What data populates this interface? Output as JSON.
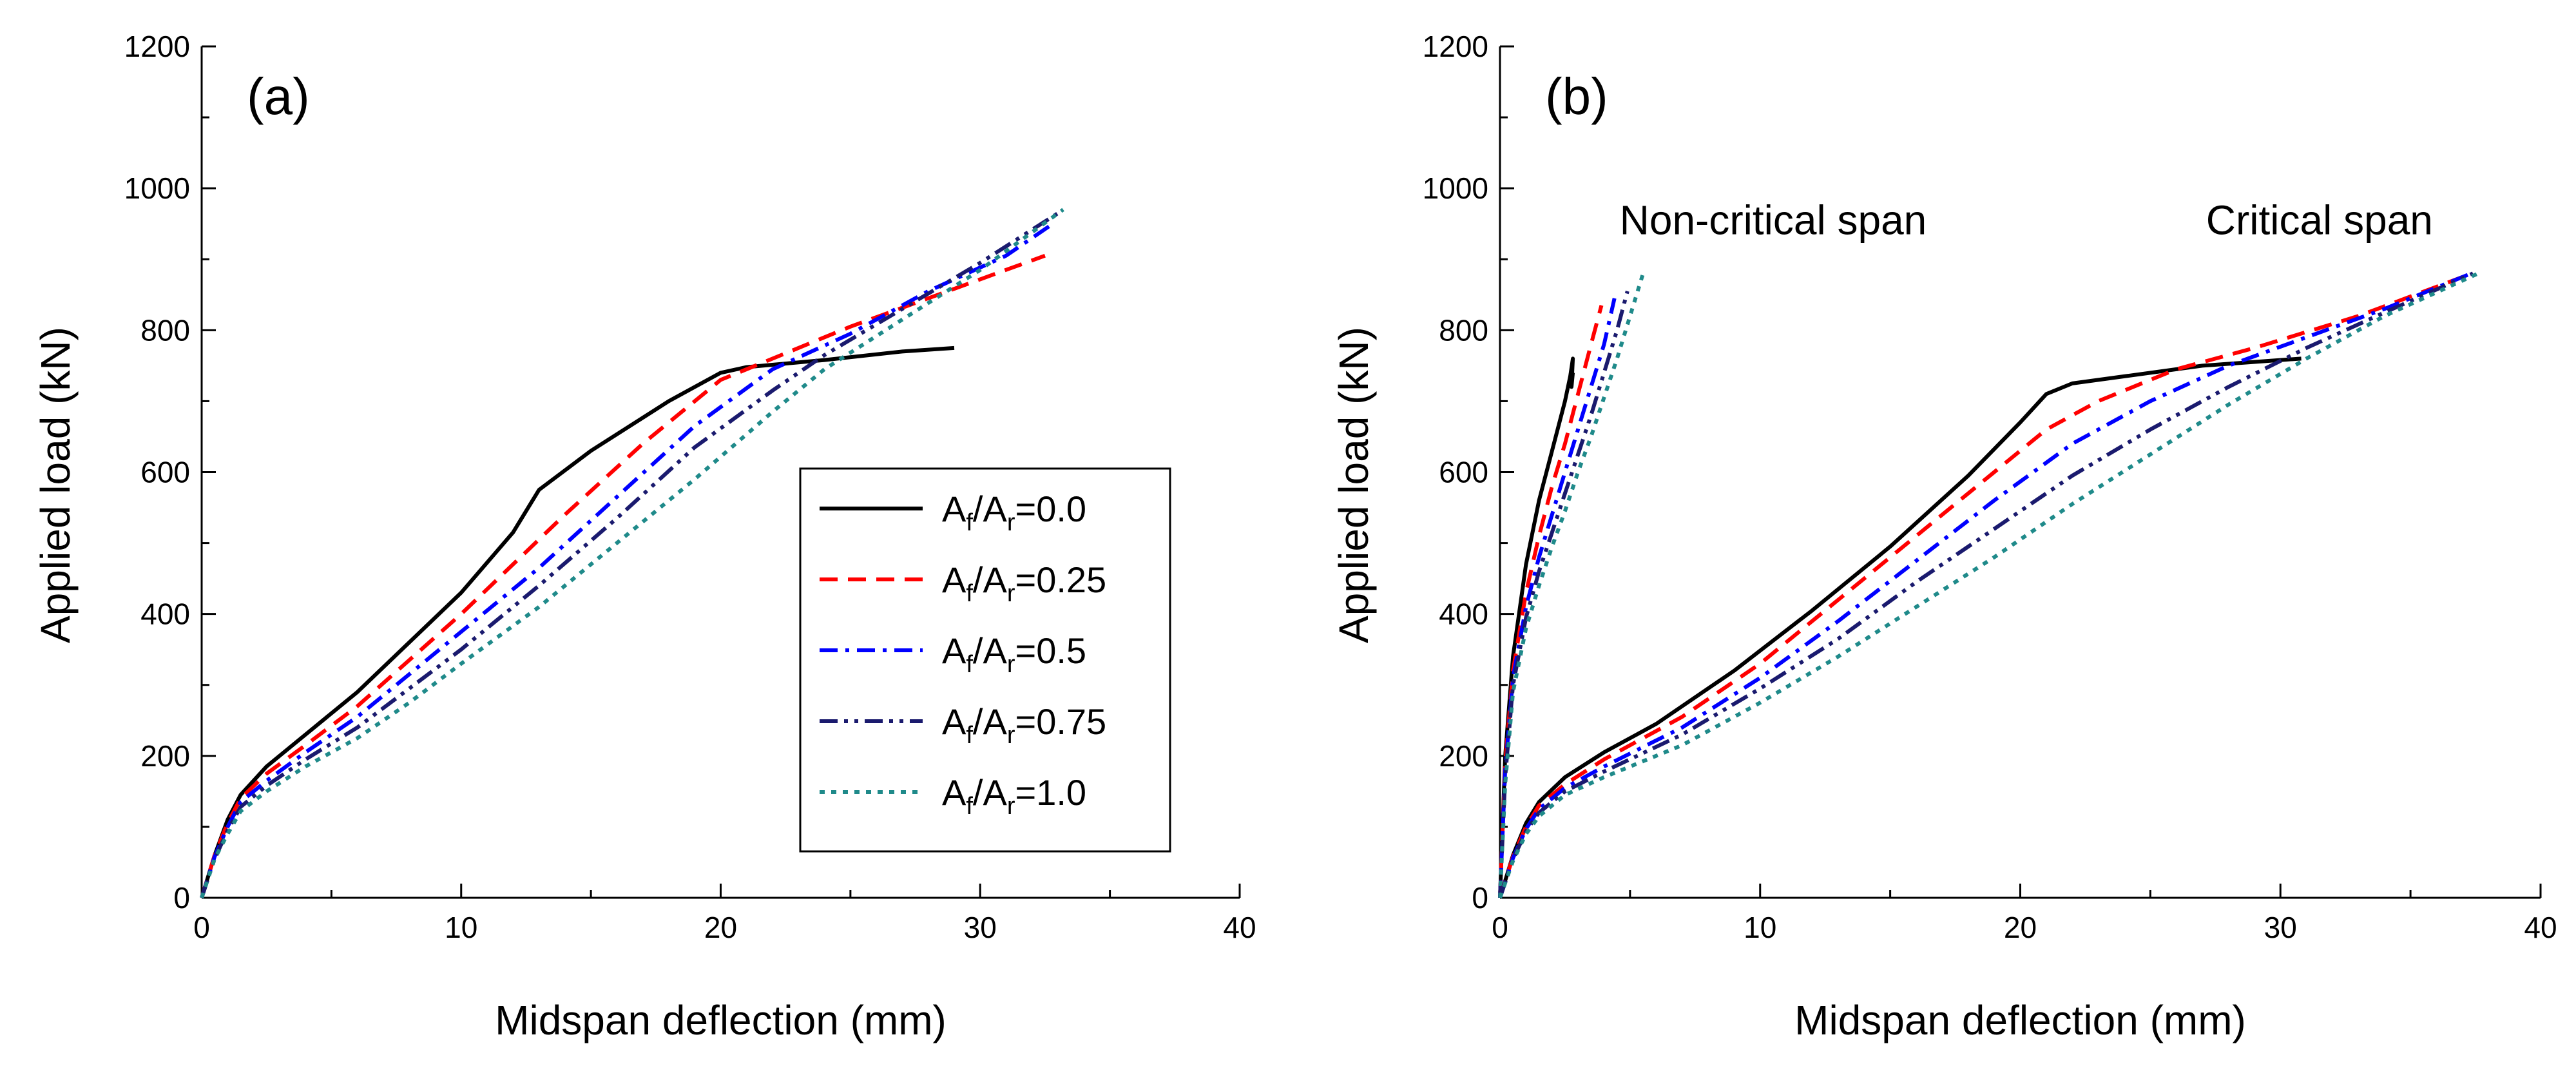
{
  "chart_data": [
    {
      "type": "line",
      "panel_label": "(a)",
      "xlabel": "Midspan deflection (mm)",
      "ylabel": "Applied load (kN)",
      "xlim": [
        0,
        40
      ],
      "ylim": [
        0,
        1200
      ],
      "xticks": [
        0,
        10,
        20,
        30,
        40
      ],
      "yticks": [
        0,
        200,
        400,
        600,
        800,
        1000,
        1200
      ],
      "legend_position": "center-right",
      "annotations": [],
      "series": [
        {
          "name": "Af/Ar=0.0",
          "label_parts": [
            "A",
            "f",
            "/A",
            "r",
            "=0.0"
          ],
          "color": "#000000",
          "dash": "solid",
          "x": [
            0,
            0.5,
            1.0,
            1.5,
            2.5,
            4.0,
            6.0,
            8.0,
            10.0,
            12.0,
            13.0,
            15.0,
            18.0,
            20.0,
            21.0,
            24.0,
            27.0,
            29.0
          ],
          "y": [
            0,
            60,
            110,
            145,
            185,
            230,
            290,
            360,
            430,
            515,
            575,
            630,
            700,
            740,
            748,
            758,
            770,
            775
          ]
        },
        {
          "name": "Af/Ar=0.25",
          "label_parts": [
            "A",
            "f",
            "/A",
            "r",
            "=0.25"
          ],
          "color": "#ff0000",
          "dash": "dashed",
          "x": [
            0,
            0.5,
            1.0,
            1.5,
            2.5,
            4.0,
            6.0,
            8.0,
            10.0,
            12.0,
            14.0,
            17.0,
            20.0,
            22.0,
            25.0,
            28.0,
            32.5
          ],
          "y": [
            0,
            60,
            105,
            140,
            175,
            215,
            270,
            335,
            400,
            470,
            540,
            640,
            730,
            760,
            805,
            845,
            905
          ]
        },
        {
          "name": "Af/Ar=0.5",
          "label_parts": [
            "A",
            "f",
            "/A",
            "r",
            "=0.5"
          ],
          "color": "#0000ff",
          "dash": "dashdot",
          "x": [
            0,
            0.5,
            1.0,
            1.5,
            2.5,
            4.0,
            6.0,
            8.0,
            10.0,
            13.0,
            16.0,
            19.0,
            22.0,
            25.0,
            28.0,
            31.0,
            32.8
          ],
          "y": [
            0,
            58,
            100,
            135,
            165,
            205,
            255,
            315,
            375,
            465,
            565,
            665,
            745,
            795,
            855,
            905,
            950
          ]
        },
        {
          "name": "Af/Ar=0.75",
          "label_parts": [
            "A",
            "f",
            "/A",
            "r",
            "=0.75"
          ],
          "color": "#1a1a6e",
          "dash": "dashdotdot",
          "x": [
            0,
            0.5,
            1.0,
            1.5,
            2.5,
            4.0,
            6.0,
            8.0,
            10.0,
            13.0,
            16.0,
            19.0,
            22.0,
            24.0,
            27.0,
            30.0,
            33.0
          ],
          "y": [
            0,
            55,
            95,
            128,
            158,
            195,
            240,
            295,
            350,
            440,
            535,
            635,
            715,
            765,
            830,
            895,
            965
          ]
        },
        {
          "name": "Af/Ar=1.0",
          "label_parts": [
            "A",
            "f",
            "/A",
            "r",
            "=1.0"
          ],
          "color": "#1f8a8a",
          "dash": "dotted",
          "x": [
            0,
            0.5,
            1.0,
            1.5,
            2.5,
            4.0,
            6.0,
            8.0,
            10.0,
            13.0,
            16.0,
            19.0,
            22.0,
            24.0,
            27.0,
            30.0,
            33.2
          ],
          "y": [
            0,
            55,
            90,
            122,
            150,
            185,
            225,
            275,
            330,
            410,
            500,
            590,
            685,
            745,
            815,
            885,
            970
          ]
        }
      ]
    },
    {
      "type": "line",
      "panel_label": "(b)",
      "xlabel": "Midspan deflection (mm)",
      "ylabel": "Applied load (kN)",
      "xlim": [
        0,
        40
      ],
      "ylim": [
        0,
        1200
      ],
      "xticks": [
        0,
        10,
        20,
        30,
        40
      ],
      "yticks": [
        0,
        200,
        400,
        600,
        800,
        1000,
        1200
      ],
      "legend_position": "none",
      "annotations": [
        {
          "text": "Non-critical span",
          "at_data": [
            10.5,
            935
          ]
        },
        {
          "text": "Critical span",
          "at_data": [
            31.5,
            935
          ]
        }
      ],
      "series": [
        {
          "name": "Af/Ar=0.0 non-critical",
          "color": "#000000",
          "dash": "solid",
          "x": [
            0,
            0.2,
            0.5,
            1.0,
            1.5,
            2.0,
            2.5,
            2.7,
            2.8,
            2.75,
            2.8
          ],
          "y": [
            0,
            200,
            340,
            470,
            560,
            630,
            700,
            735,
            760,
            720,
            740
          ]
        },
        {
          "name": "Af/Ar=0.25 non-critical",
          "color": "#ff0000",
          "dash": "dashed",
          "x": [
            0,
            0.2,
            0.5,
            1.0,
            1.5,
            2.0,
            2.5,
            3.0,
            3.5,
            3.9
          ],
          "y": [
            0,
            190,
            320,
            430,
            510,
            580,
            640,
            710,
            780,
            835
          ]
        },
        {
          "name": "Af/Ar=0.5 non-critical",
          "color": "#0000ff",
          "dash": "dashdot",
          "x": [
            0,
            0.2,
            0.5,
            1.0,
            1.5,
            2.0,
            2.5,
            3.0,
            3.5,
            4.0,
            4.4
          ],
          "y": [
            0,
            180,
            310,
            410,
            480,
            540,
            600,
            660,
            720,
            780,
            845
          ]
        },
        {
          "name": "Af/Ar=0.75 non-critical",
          "color": "#1a1a6e",
          "dash": "dashdotdot",
          "x": [
            0,
            0.2,
            0.5,
            1.0,
            1.5,
            2.0,
            2.5,
            3.0,
            3.5,
            4.0,
            4.5,
            4.9
          ],
          "y": [
            0,
            170,
            300,
            395,
            460,
            515,
            570,
            625,
            680,
            740,
            800,
            855
          ]
        },
        {
          "name": "Af/Ar=1.0 non-critical",
          "color": "#1f8a8a",
          "dash": "dotted",
          "x": [
            0,
            0.2,
            0.5,
            1.0,
            1.5,
            2.0,
            2.5,
            3.0,
            3.5,
            4.0,
            4.5,
            5.0,
            5.5
          ],
          "y": [
            0,
            160,
            290,
            380,
            440,
            495,
            545,
            600,
            650,
            705,
            760,
            820,
            880
          ]
        },
        {
          "name": "Af/Ar=0.0 critical",
          "color": "#000000",
          "dash": "solid",
          "x": [
            0,
            0.5,
            1.0,
            1.5,
            2.5,
            4.0,
            6.0,
            9.0,
            12.0,
            15.0,
            18.0,
            20.0,
            21.0,
            22.0,
            24.0,
            27.0,
            30.0,
            30.8
          ],
          "y": [
            0,
            60,
            105,
            135,
            170,
            205,
            245,
            320,
            405,
            495,
            595,
            670,
            710,
            725,
            735,
            750,
            758,
            760
          ]
        },
        {
          "name": "Af/Ar=0.25 critical",
          "color": "#ff0000",
          "dash": "dashed",
          "x": [
            0,
            0.5,
            1.0,
            1.5,
            2.5,
            4.0,
            7.0,
            10.0,
            13.0,
            16.0,
            19.0,
            21.0,
            23.0,
            26.0,
            29.0,
            33.0,
            37.0
          ],
          "y": [
            0,
            58,
            100,
            130,
            160,
            195,
            255,
            330,
            420,
            510,
            600,
            660,
            700,
            745,
            775,
            820,
            875
          ]
        },
        {
          "name": "Af/Ar=0.5 critical",
          "color": "#0000ff",
          "dash": "dashdot",
          "x": [
            0,
            0.5,
            1.0,
            1.5,
            2.5,
            4.0,
            7.0,
            10.0,
            13.0,
            16.0,
            19.0,
            22.0,
            25.0,
            28.0,
            31.0,
            34.0,
            37.2
          ],
          "y": [
            0,
            56,
            97,
            125,
            155,
            185,
            240,
            310,
            390,
            475,
            560,
            640,
            700,
            750,
            790,
            830,
            878
          ]
        },
        {
          "name": "Af/Ar=0.75 critical",
          "color": "#1a1a6e",
          "dash": "dashdotdot",
          "x": [
            0,
            0.5,
            1.0,
            1.5,
            2.5,
            4.0,
            7.0,
            10.0,
            13.0,
            16.0,
            19.0,
            22.0,
            25.0,
            28.0,
            31.0,
            34.0,
            37.4
          ],
          "y": [
            0,
            54,
            94,
            120,
            150,
            178,
            230,
            295,
            365,
            445,
            520,
            595,
            660,
            720,
            775,
            825,
            880
          ]
        },
        {
          "name": "Af/Ar=1.0 critical",
          "color": "#1f8a8a",
          "dash": "dotted",
          "x": [
            0,
            0.5,
            1.0,
            1.5,
            2.5,
            4.0,
            7.0,
            10.0,
            13.0,
            16.0,
            19.0,
            22.0,
            25.0,
            28.0,
            31.0,
            34.0,
            37.6
          ],
          "y": [
            0,
            52,
            90,
            115,
            145,
            170,
            215,
            275,
            340,
            410,
            480,
            555,
            625,
            695,
            760,
            820,
            880
          ]
        }
      ]
    }
  ]
}
